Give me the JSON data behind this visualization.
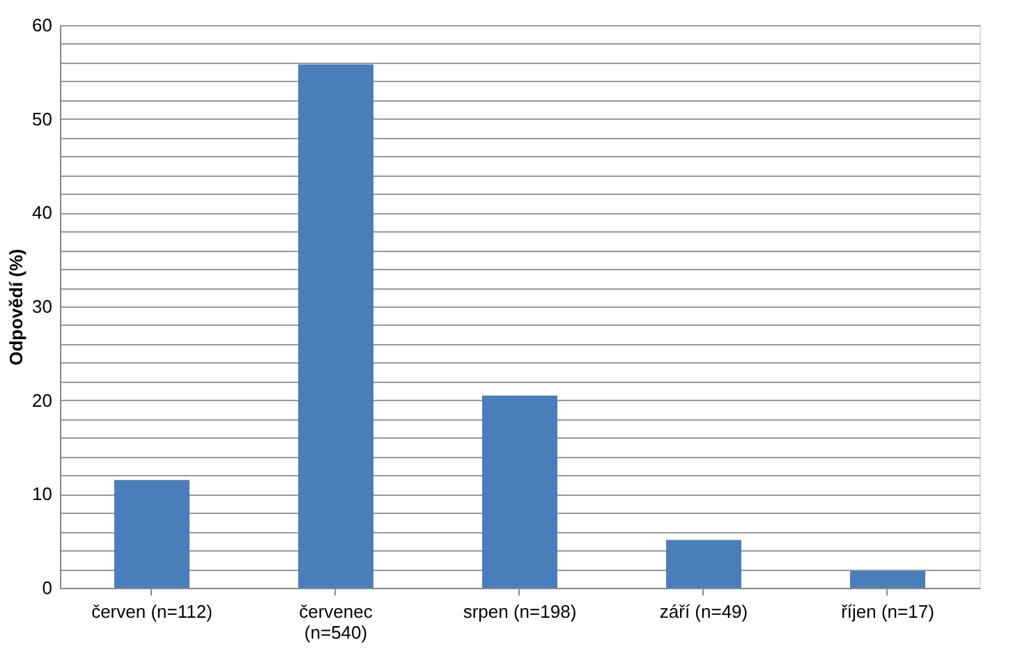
{
  "chart_data": {
    "type": "bar",
    "ylabel": "Odpovědí (%)",
    "categories": [
      "červen (n=112)",
      "červenec\n(n=540)",
      "srpen (n=198)",
      "září (n=49)",
      "říjen (n=17)"
    ],
    "values": [
      11.5,
      55.8,
      20.5,
      5.1,
      1.8
    ],
    "color": "#4a7ebb",
    "ylim": [
      0,
      60
    ],
    "yticks": [
      0,
      {
        "value": 2,
        "label": null
      },
      {
        "value": 4,
        "label": null
      },
      {
        "value": 6,
        "label": null
      },
      {
        "value": 8,
        "label": null
      },
      10,
      {
        "value": 12,
        "label": null
      },
      {
        "value": 14,
        "label": null
      },
      {
        "value": 16,
        "label": null
      },
      {
        "value": 18,
        "label": null
      },
      20,
      {
        "value": 22,
        "label": null
      },
      {
        "value": 24,
        "label": null
      },
      {
        "value": 26,
        "label": null
      },
      {
        "value": 28,
        "label": null
      },
      30,
      {
        "value": 32,
        "label": null
      },
      {
        "value": 34,
        "label": null
      },
      {
        "value": 36,
        "label": null
      },
      {
        "value": 38,
        "label": null
      },
      40,
      {
        "value": 42,
        "label": null
      },
      {
        "value": 44,
        "label": null
      },
      {
        "value": 46,
        "label": null
      },
      {
        "value": 48,
        "label": null
      },
      50,
      {
        "value": 52,
        "label": null
      },
      {
        "value": 54,
        "label": null
      },
      {
        "value": 56,
        "label": null
      },
      {
        "value": 58,
        "label": null
      },
      60
    ],
    "grid": "y"
  }
}
